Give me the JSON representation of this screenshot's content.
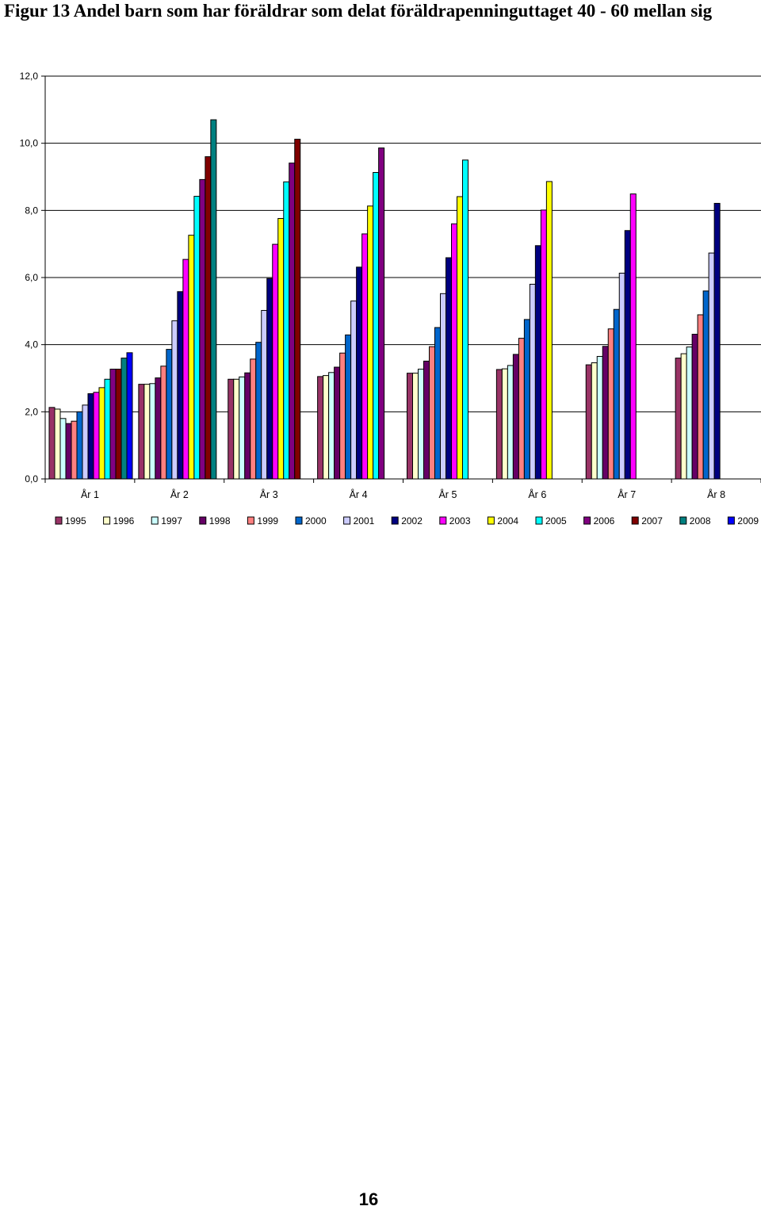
{
  "page": {
    "number": "16"
  },
  "chart_data": {
    "type": "bar",
    "title": "Figur 13 Andel barn som har föräldrar som delat föräldrapenninguttaget 40 - 60 mellan sig",
    "xlabel": "",
    "ylabel": "",
    "ylim": [
      0,
      12
    ],
    "yticks": [
      "0,0",
      "2,0",
      "4,0",
      "6,0",
      "8,0",
      "10,0",
      "12,0"
    ],
    "grid": true,
    "legend_position": "bottom",
    "categories": [
      "År 1",
      "År 2",
      "År 3",
      "År 4",
      "År 5",
      "År 6",
      "År 7",
      "År 8"
    ],
    "series": [
      {
        "name": "1995",
        "color": "#993366",
        "values": [
          2.13,
          2.82,
          2.97,
          3.05,
          3.15,
          3.26,
          3.4,
          3.6
        ]
      },
      {
        "name": "1996",
        "color": "#FFFFCC",
        "values": [
          2.08,
          2.82,
          2.97,
          3.08,
          3.15,
          3.28,
          3.46,
          3.73
        ]
      },
      {
        "name": "1997",
        "color": "#CCFFFF",
        "values": [
          1.8,
          2.84,
          3.04,
          3.17,
          3.27,
          3.38,
          3.65,
          3.93
        ]
      },
      {
        "name": "1998",
        "color": "#660066",
        "values": [
          1.65,
          3.01,
          3.16,
          3.33,
          3.51,
          3.71,
          3.95,
          4.31
        ]
      },
      {
        "name": "1999",
        "color": "#FF8080",
        "values": [
          1.72,
          3.36,
          3.57,
          3.75,
          3.94,
          4.19,
          4.47,
          4.89
        ]
      },
      {
        "name": "2000",
        "color": "#0066CC",
        "values": [
          2.0,
          3.86,
          4.07,
          4.29,
          4.51,
          4.75,
          5.05,
          5.6
        ]
      },
      {
        "name": "2001",
        "color": "#CCCCFF",
        "values": [
          2.2,
          4.71,
          5.02,
          5.3,
          5.52,
          5.8,
          6.13,
          6.73
        ]
      },
      {
        "name": "2002",
        "color": "#000080",
        "values": [
          2.54,
          5.58,
          5.97,
          6.31,
          6.59,
          6.95,
          7.4,
          8.21
        ]
      },
      {
        "name": "2003",
        "color": "#FF00FF",
        "values": [
          2.58,
          6.54,
          6.99,
          7.3,
          7.6,
          8.01,
          8.49,
          null
        ]
      },
      {
        "name": "2004",
        "color": "#FFFF00",
        "values": [
          2.72,
          7.26,
          7.76,
          8.13,
          8.41,
          8.86,
          null,
          null
        ]
      },
      {
        "name": "2005",
        "color": "#00FFFF",
        "values": [
          2.97,
          8.42,
          8.85,
          9.13,
          9.5,
          null,
          null,
          null
        ]
      },
      {
        "name": "2006",
        "color": "#800080",
        "values": [
          3.27,
          8.92,
          9.41,
          9.86,
          null,
          null,
          null,
          null
        ]
      },
      {
        "name": "2007",
        "color": "#800000",
        "values": [
          3.27,
          9.6,
          10.12,
          null,
          null,
          null,
          null,
          null
        ]
      },
      {
        "name": "2008",
        "color": "#008080",
        "values": [
          3.6,
          10.7,
          null,
          null,
          null,
          null,
          null,
          null
        ]
      },
      {
        "name": "2009",
        "color": "#0000FF",
        "values": [
          3.76,
          null,
          null,
          null,
          null,
          null,
          null,
          null
        ]
      }
    ]
  }
}
